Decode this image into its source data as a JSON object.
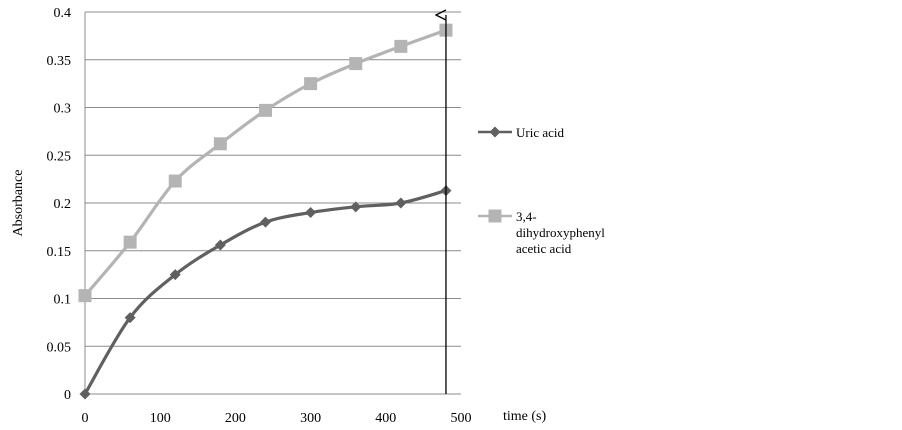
{
  "chart_data": {
    "type": "line",
    "title": "",
    "xlabel": "time (s)",
    "ylabel": "Absorbance",
    "xlim": [
      0,
      500
    ],
    "ylim": [
      0,
      0.4
    ],
    "xticks": [
      0,
      100,
      200,
      300,
      400,
      500
    ],
    "xtick_labels": [
      "0",
      "100",
      "200",
      "300",
      "400",
      "500"
    ],
    "yticks": [
      0,
      0.05,
      0.1,
      0.15,
      0.2,
      0.25,
      0.3,
      0.35,
      0.4
    ],
    "ytick_labels": [
      "0",
      "0.05",
      "0.1",
      "0.15",
      "0.2",
      "0.25",
      "0.3",
      "0.35",
      "0.4"
    ],
    "grid": "horizontal",
    "legend_position": "right",
    "series": [
      {
        "name": "Uric acid",
        "legend_lines": [
          "Uric acid"
        ],
        "color": "#606060",
        "marker": "diamond",
        "smooth": true,
        "x": [
          0,
          60,
          120,
          180,
          240,
          300,
          360,
          420,
          480
        ],
        "y": [
          0.0,
          0.08,
          0.125,
          0.156,
          0.18,
          0.19,
          0.196,
          0.2,
          0.213
        ]
      },
      {
        "name": "3,4-dihydroxyphenyl acetic acid",
        "legend_lines": [
          "3,4-",
          "dihydroxyphenyl",
          "acetic acid"
        ],
        "color": "#b4b4b4",
        "marker": "square",
        "smooth": true,
        "x": [
          0,
          60,
          120,
          180,
          240,
          300,
          360,
          420,
          480
        ],
        "y": [
          0.103,
          0.159,
          0.223,
          0.262,
          0.297,
          0.325,
          0.346,
          0.364,
          0.381
        ]
      }
    ],
    "annotations": [
      {
        "type": "arrow",
        "x_start": 480,
        "y_start": 0,
        "x_end": 480,
        "y_end": 0.4,
        "color": "#000000"
      }
    ]
  }
}
